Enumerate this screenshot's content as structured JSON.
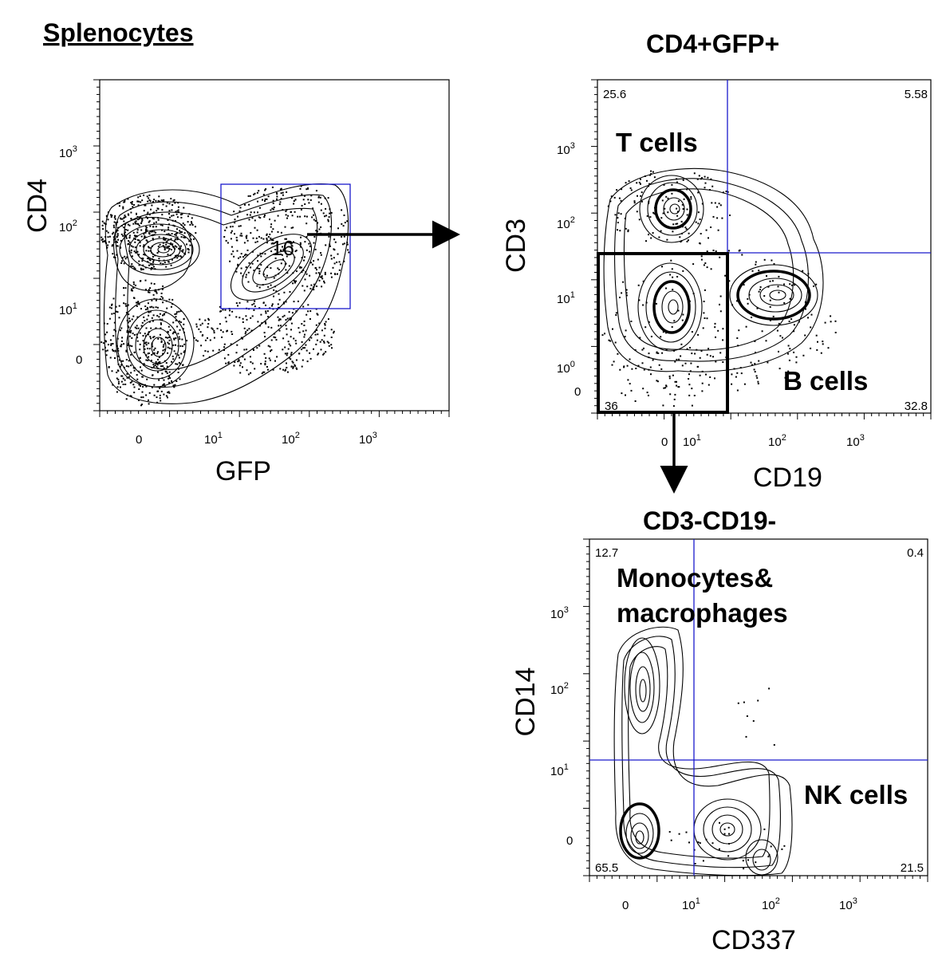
{
  "chart_data": [
    {
      "type": "contour",
      "title": "Splenocytes",
      "xlabel": "GFP",
      "ylabel": "CD4",
      "x_ticks": [
        {
          "base": "0",
          "exp": ""
        },
        {
          "base": "10",
          "exp": "1"
        },
        {
          "base": "10",
          "exp": "2"
        },
        {
          "base": "10",
          "exp": "3"
        }
      ],
      "y_ticks": [
        {
          "base": "0",
          "exp": ""
        },
        {
          "base": "10",
          "exp": "1"
        },
        {
          "base": "10",
          "exp": "2"
        },
        {
          "base": "10",
          "exp": "3"
        }
      ],
      "gate": {
        "label": "16"
      }
    },
    {
      "type": "contour",
      "title": "CD4+GFP+",
      "xlabel": "CD19",
      "ylabel": "CD3",
      "x_ticks": [
        {
          "base": "0",
          "exp": ""
        },
        {
          "base": "10",
          "exp": "1"
        },
        {
          "base": "10",
          "exp": "2"
        },
        {
          "base": "10",
          "exp": "3"
        }
      ],
      "y_ticks": [
        {
          "base": "0",
          "exp": ""
        },
        {
          "base": "10",
          "exp": "0"
        },
        {
          "base": "10",
          "exp": "1"
        },
        {
          "base": "10",
          "exp": "2"
        },
        {
          "base": "10",
          "exp": "3"
        }
      ],
      "quadrants": {
        "upper_left": "25.6",
        "upper_right": "5.58",
        "lower_left": "36",
        "lower_right": "32.8"
      },
      "populations": [
        "T cells",
        "B cells"
      ]
    },
    {
      "type": "contour",
      "title": "CD3-CD19-",
      "xlabel": "CD337",
      "ylabel": "CD14",
      "x_ticks": [
        {
          "base": "0",
          "exp": ""
        },
        {
          "base": "10",
          "exp": "1"
        },
        {
          "base": "10",
          "exp": "2"
        },
        {
          "base": "10",
          "exp": "3"
        }
      ],
      "y_ticks": [
        {
          "base": "0",
          "exp": ""
        },
        {
          "base": "10",
          "exp": "1"
        },
        {
          "base": "10",
          "exp": "2"
        },
        {
          "base": "10",
          "exp": "3"
        }
      ],
      "quadrants": {
        "upper_left": "12.7",
        "upper_right": "0.4",
        "lower_left": "65.5",
        "lower_right": "21.5"
      },
      "populations": [
        "Monocytes&",
        "macrophages",
        "NK cells"
      ]
    }
  ],
  "colors": {
    "gate_line": "#1a1acc",
    "contour": "#000000",
    "arrow": "#000000"
  }
}
